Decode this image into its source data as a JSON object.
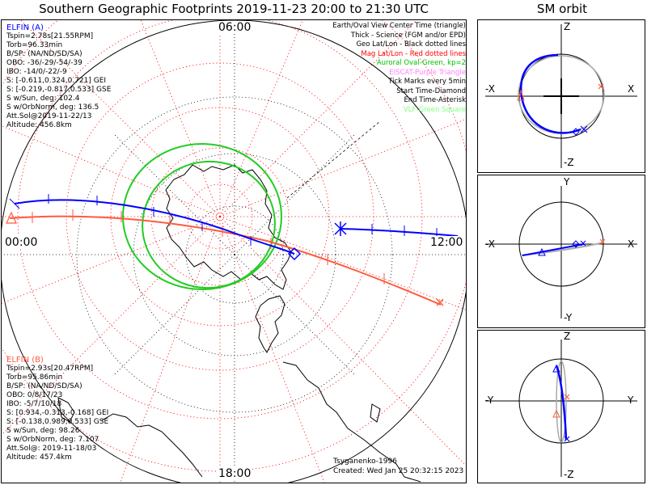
{
  "title": "Southern Geographic Footprints 2019-11-23 20:00 to 21:30 UTC",
  "sm_title": "SM orbit",
  "clock_labels": {
    "top": "06:00",
    "left": "00:00",
    "right": "12:00",
    "bottom": "18:00"
  },
  "elfin_a": {
    "name": "ELFIN (A)",
    "color": "#0000ff",
    "lines": [
      "Tspin=2.78s[21.55RPM]",
      "Torb=96.33min",
      "B/SP: (NA/ND/SD/SA)",
      "OBO: -36/-29/-54/-39",
      "IBO: -14/0/-22/-9",
      "S: [-0.611,0.324,0.721] GEI",
      "S: [-0.219,-0.817,0.533] GSE",
      "S w/Sun, deg: 102.4",
      "S w/OrbNorm, deg: 136.5",
      "Att.Sol@2019-11-22/13",
      "Altitude: 456.8km"
    ]
  },
  "elfin_b": {
    "name": "ELFIN (B)",
    "color": "#ff5a3c",
    "lines": [
      "Tspin=2.93s[20.47RPM]",
      "Torb=95.86min",
      "B/SP: (NA/ND/SD/SA)",
      "OBO: 0/8/17/23",
      "IBO: -5/7/10/18",
      "S: [0.934,-0.313,-0.168] GEI",
      "S: [-0.138,0.989,0.533] GSE",
      "S w/Sun, deg: 98.26",
      "S w/OrbNorm, deg: 7.107",
      "Att.Sol@: 2019-11-18/03",
      "Altitude: 457.4km"
    ]
  },
  "legend": [
    {
      "text": "Earth/Oval View Center Time (triangle)",
      "color": "#000000"
    },
    {
      "text": "Thick - Science (FGM and/or EPD)",
      "color": "#000000"
    },
    {
      "text": "Geo Lat/Lon - Black dotted lines",
      "color": "#000000"
    },
    {
      "text": "Mag Lat/Lon - Red dotted lines",
      "color": "#ff0000"
    },
    {
      "text": "Auroral Oval-Green, kp=2",
      "color": "#00c000"
    },
    {
      "text": "EISCAT-Purple Triangle",
      "color": "#ff80ff"
    },
    {
      "text": "Tick Marks every 5min",
      "color": "#000000"
    },
    {
      "text": "Start Time-Diamond",
      "color": "#000000"
    },
    {
      "text": "End Time-Asterisk",
      "color": "#000000"
    },
    {
      "text": "VLF-Green Square",
      "color": "#80ff80"
    }
  ],
  "credit": {
    "author": "Tsyganenko-1996",
    "created": "Created: Wed Jan 25 20:32:15 2023"
  },
  "orbit_panels": [
    {
      "top": "Z",
      "bottom": "-Z",
      "left": "-X",
      "right": "X"
    },
    {
      "top": "Y",
      "bottom": "-Y",
      "left": "-X",
      "right": "X"
    },
    {
      "top": "Z",
      "bottom": "-Z",
      "left": "-Y",
      "right": "Y"
    }
  ],
  "colors": {
    "mag_grid": "#ff0000",
    "geo_grid": "#000000",
    "oval": "#22cc22",
    "track_a": "#0000ff",
    "track_b": "#ff5a3c"
  }
}
